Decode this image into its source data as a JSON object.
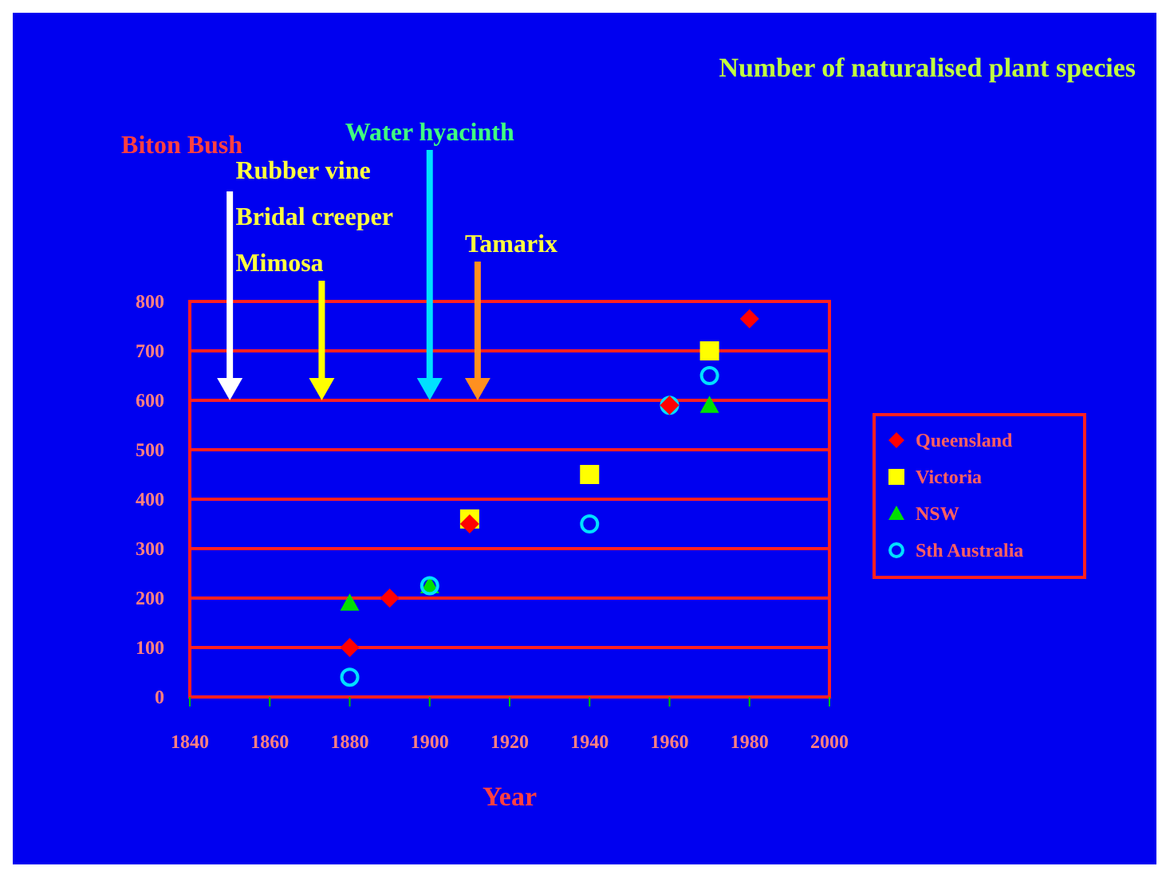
{
  "chart_data": {
    "type": "scatter",
    "title": "Number of naturalised plant species",
    "xlabel": "Year",
    "xlim": [
      1840,
      2000
    ],
    "xticks": [
      1840,
      1860,
      1880,
      1900,
      1920,
      1940,
      1960,
      1980,
      2000
    ],
    "ylim": [
      0,
      800
    ],
    "yticks": [
      0,
      100,
      200,
      300,
      400,
      500,
      600,
      700,
      800
    ],
    "grid": "y",
    "legend": "right",
    "series": [
      {
        "name": "Queensland",
        "color": "#ff0000",
        "marker": "diamond",
        "x": [
          1880,
          1890,
          1910,
          1960,
          1980
        ],
        "values": [
          100,
          200,
          350,
          590,
          765
        ]
      },
      {
        "name": "Victoria",
        "color": "#ffff00",
        "marker": "square",
        "x": [
          1910,
          1940,
          1970
        ],
        "values": [
          360,
          450,
          700
        ]
      },
      {
        "name": "NSW",
        "color": "#00e000",
        "marker": "triangle",
        "x": [
          1880,
          1900,
          1970
        ],
        "values": [
          190,
          225,
          590
        ]
      },
      {
        "name": "Sth Australia",
        "color": "#00e0ff",
        "marker": "circle",
        "x": [
          1880,
          1900,
          1940,
          1960,
          1970
        ],
        "values": [
          40,
          225,
          350,
          590,
          650
        ]
      }
    ],
    "ref_lines": [
      {
        "axis": "x",
        "value": 1850,
        "label": "Biton Bush",
        "color": "#ffffff"
      },
      {
        "axis": "x",
        "value": 1873,
        "label": "Rubber vine\nBridal creeper\nMimosa",
        "color": "#ffff00"
      },
      {
        "axis": "x",
        "value": 1900,
        "label": "Water hyacinth",
        "color": "#00e0ff"
      },
      {
        "axis": "x",
        "value": 1912,
        "label": "Tamarix",
        "color": "#ff9020"
      }
    ]
  }
}
